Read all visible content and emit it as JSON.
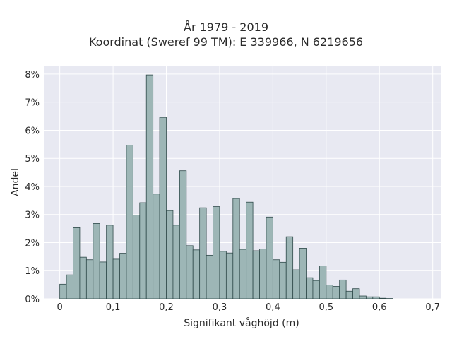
{
  "chart_data": {
    "type": "bar",
    "title": "År 1979 - 2019",
    "subtitle": "Koordinat (Sweref 99 TM): E 339966, N 6219656",
    "xlabel": "Signifikant våghöjd (m)",
    "ylabel": "Andel",
    "xlim": [
      -0.03,
      0.715
    ],
    "ylim": [
      0,
      8.3
    ],
    "grid": true,
    "bar_color": "#9db6b6",
    "bar_edge_color": "#2f4a4a",
    "plot_bg": "#e8e9f2",
    "x_ticks": [
      {
        "value": 0,
        "label": "0"
      },
      {
        "value": 0.1,
        "label": "0,1"
      },
      {
        "value": 0.2,
        "label": "0,2"
      },
      {
        "value": 0.3,
        "label": "0,3"
      },
      {
        "value": 0.4,
        "label": "0,4"
      },
      {
        "value": 0.5,
        "label": "0,5"
      },
      {
        "value": 0.6,
        "label": "0,6"
      },
      {
        "value": 0.7,
        "label": "0,7"
      }
    ],
    "y_ticks": [
      {
        "value": 0,
        "label": "0%"
      },
      {
        "value": 1,
        "label": "1%"
      },
      {
        "value": 2,
        "label": "2%"
      },
      {
        "value": 3,
        "label": "3%"
      },
      {
        "value": 4,
        "label": "4%"
      },
      {
        "value": 5,
        "label": "5%"
      },
      {
        "value": 6,
        "label": "6%"
      },
      {
        "value": 7,
        "label": "7%"
      },
      {
        "value": 8,
        "label": "8%"
      }
    ],
    "bin_width": 0.0125,
    "bin_start": 0,
    "values": [
      0.52,
      0.85,
      2.53,
      1.48,
      1.39,
      2.68,
      1.31,
      2.62,
      1.41,
      1.62,
      5.47,
      2.98,
      3.42,
      7.97,
      3.73,
      6.46,
      3.14,
      2.62,
      4.56,
      1.89,
      1.74,
      3.24,
      1.55,
      3.28,
      1.69,
      1.63,
      3.57,
      1.76,
      3.44,
      1.71,
      1.77,
      2.91,
      1.39,
      1.3,
      2.21,
      1.03,
      1.8,
      0.75,
      0.65,
      1.17,
      0.49,
      0.44,
      0.67,
      0.27,
      0.36,
      0.1,
      0.07,
      0.07,
      0.02,
      0.01,
      0.0
    ]
  }
}
